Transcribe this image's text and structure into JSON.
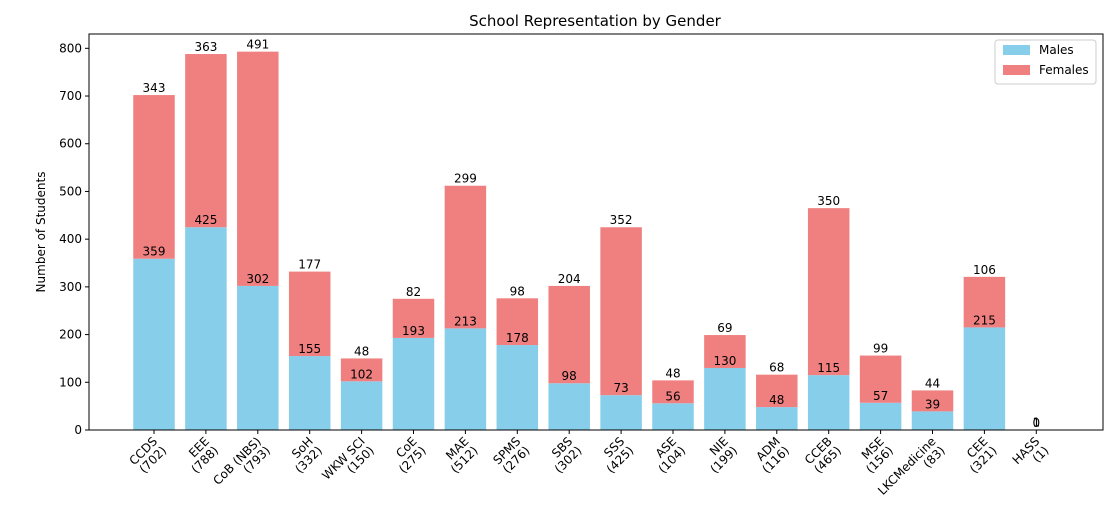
{
  "chart_data": {
    "type": "bar",
    "stacked": true,
    "title": "School Representation by Gender",
    "xlabel": "",
    "ylabel": "Number of Students",
    "ylim": [
      0,
      830
    ],
    "yticks": [
      0,
      100,
      200,
      300,
      400,
      500,
      600,
      700,
      800
    ],
    "legend_position": "top-right",
    "grid": false,
    "categories": [
      "CCDS",
      "EEE",
      "CoB (NBS)",
      "SoH",
      "WKW SCI",
      "CoE",
      "MAE",
      "SPMS",
      "SBS",
      "SSS",
      "ASE",
      "NIE",
      "ADM",
      "CCEB",
      "MSE",
      "LKCMedicine",
      "CEE",
      "HASS"
    ],
    "category_labels": [
      "CCDS\n(702)",
      "EEE\n(788)",
      "CoB (NBS)\n(793)",
      "SoH\n(332)",
      "WKW SCI\n(150)",
      "CoE\n(275)",
      "MAE\n(512)",
      "SPMS\n(276)",
      "SBS\n(302)",
      "SSS\n(425)",
      "ASE\n(104)",
      "NIE\n(199)",
      "ADM\n(116)",
      "CCEB\n(465)",
      "MSE\n(156)",
      "LKCMedicine\n(83)",
      "CEE\n(321)",
      "HASS\n(1)"
    ],
    "series": [
      {
        "name": "Males",
        "color": "#87ceeb",
        "values": [
          359,
          425,
          302,
          155,
          102,
          193,
          213,
          178,
          98,
          73,
          56,
          130,
          48,
          115,
          57,
          39,
          215,
          0
        ]
      },
      {
        "name": "Females",
        "color": "#f08080",
        "values": [
          343,
          363,
          491,
          177,
          48,
          82,
          299,
          98,
          204,
          352,
          48,
          69,
          68,
          350,
          99,
          44,
          106,
          1
        ]
      }
    ]
  }
}
